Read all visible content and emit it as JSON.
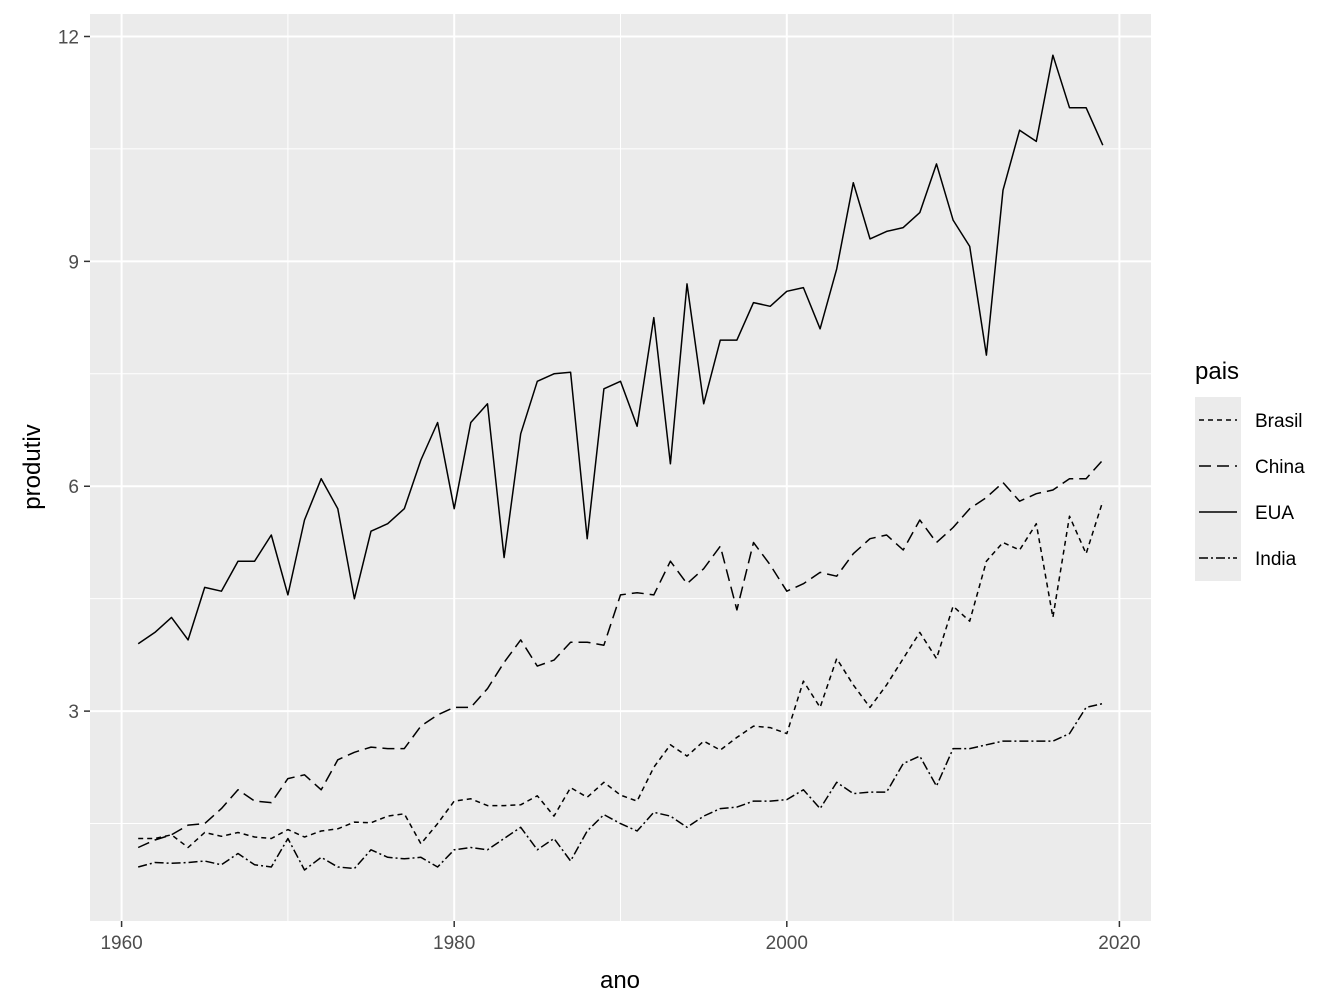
{
  "chart_data": {
    "type": "line",
    "xlabel": "ano",
    "ylabel": "produtiv",
    "xlim": [
      1958.1,
      2021.9
    ],
    "ylim": [
      0.2,
      12.3
    ],
    "x_ticks": [
      1960,
      1980,
      2000,
      2020
    ],
    "y_ticks": [
      3,
      6,
      9,
      12
    ],
    "grid": true,
    "legend": {
      "title": "pais",
      "position": "right"
    },
    "x": [
      1961,
      1962,
      1963,
      1964,
      1965,
      1966,
      1967,
      1968,
      1969,
      1970,
      1971,
      1972,
      1973,
      1974,
      1975,
      1976,
      1977,
      1978,
      1979,
      1980,
      1981,
      1982,
      1983,
      1984,
      1985,
      1986,
      1987,
      1988,
      1989,
      1990,
      1991,
      1992,
      1993,
      1994,
      1995,
      1996,
      1997,
      1998,
      1999,
      2000,
      2001,
      2002,
      2003,
      2004,
      2005,
      2006,
      2007,
      2008,
      2009,
      2010,
      2011,
      2012,
      2013,
      2014,
      2015,
      2016,
      2017,
      2018,
      2019
    ],
    "series": [
      {
        "name": "Brasil",
        "dash": "5,4",
        "values": [
          1.3,
          1.3,
          1.35,
          1.18,
          1.38,
          1.33,
          1.38,
          1.32,
          1.3,
          1.42,
          1.32,
          1.4,
          1.43,
          1.52,
          1.51,
          1.6,
          1.63,
          1.23,
          1.5,
          1.8,
          1.83,
          1.74,
          1.74,
          1.75,
          1.87,
          1.6,
          1.98,
          1.85,
          2.05,
          1.88,
          1.8,
          2.25,
          2.55,
          2.4,
          2.6,
          2.48,
          2.65,
          2.8,
          2.78,
          2.7,
          3.4,
          3.05,
          3.7,
          3.35,
          3.05,
          3.35,
          3.7,
          4.05,
          3.7,
          4.4,
          4.2,
          5.0,
          5.25,
          5.15,
          5.5,
          4.25,
          5.6,
          5.1,
          5.8
        ]
      },
      {
        "name": "China",
        "dash": "12,6",
        "values": [
          1.18,
          1.28,
          1.35,
          1.48,
          1.5,
          1.7,
          1.95,
          1.8,
          1.78,
          2.1,
          2.15,
          1.95,
          2.35,
          2.45,
          2.52,
          2.5,
          2.5,
          2.8,
          2.95,
          3.05,
          3.05,
          3.3,
          3.65,
          3.95,
          3.6,
          3.68,
          3.92,
          3.92,
          3.88,
          4.55,
          4.58,
          4.55,
          5.0,
          4.7,
          4.9,
          5.2,
          4.35,
          5.25,
          4.95,
          4.6,
          4.7,
          4.85,
          4.8,
          5.1,
          5.3,
          5.35,
          5.15,
          5.55,
          5.25,
          5.45,
          5.7,
          5.85,
          6.05,
          5.8,
          5.9,
          5.95,
          6.1,
          6.1,
          6.35
        ]
      },
      {
        "name": "EUA",
        "dash": "",
        "values": [
          3.9,
          4.05,
          4.25,
          3.95,
          4.65,
          4.6,
          5.0,
          5.0,
          5.35,
          4.55,
          5.55,
          6.1,
          5.7,
          4.5,
          5.4,
          5.5,
          5.7,
          6.35,
          6.85,
          5.7,
          6.85,
          7.1,
          5.05,
          6.7,
          7.4,
          7.5,
          7.52,
          5.3,
          7.3,
          7.4,
          6.8,
          8.25,
          6.3,
          8.7,
          7.1,
          7.95,
          7.95,
          8.45,
          8.4,
          8.6,
          8.65,
          8.1,
          8.9,
          10.05,
          9.3,
          9.4,
          9.45,
          9.65,
          10.3,
          9.55,
          9.2,
          7.75,
          9.95,
          10.75,
          10.6,
          11.75,
          11.05,
          11.05,
          10.55
        ]
      },
      {
        "name": "India",
        "dash": "9,3,2,3",
        "values": [
          0.92,
          0.98,
          0.97,
          0.98,
          1.0,
          0.95,
          1.1,
          0.95,
          0.92,
          1.3,
          0.88,
          1.05,
          0.92,
          0.9,
          1.15,
          1.05,
          1.03,
          1.05,
          0.92,
          1.15,
          1.18,
          1.15,
          1.3,
          1.45,
          1.15,
          1.3,
          1.0,
          1.4,
          1.62,
          1.5,
          1.4,
          1.65,
          1.6,
          1.45,
          1.6,
          1.7,
          1.72,
          1.8,
          1.8,
          1.82,
          1.95,
          1.7,
          2.05,
          1.9,
          1.92,
          1.92,
          2.3,
          2.4,
          2.0,
          2.5,
          2.5,
          2.55,
          2.6,
          2.6,
          2.6,
          2.6,
          2.7,
          3.05,
          3.1
        ]
      }
    ]
  }
}
